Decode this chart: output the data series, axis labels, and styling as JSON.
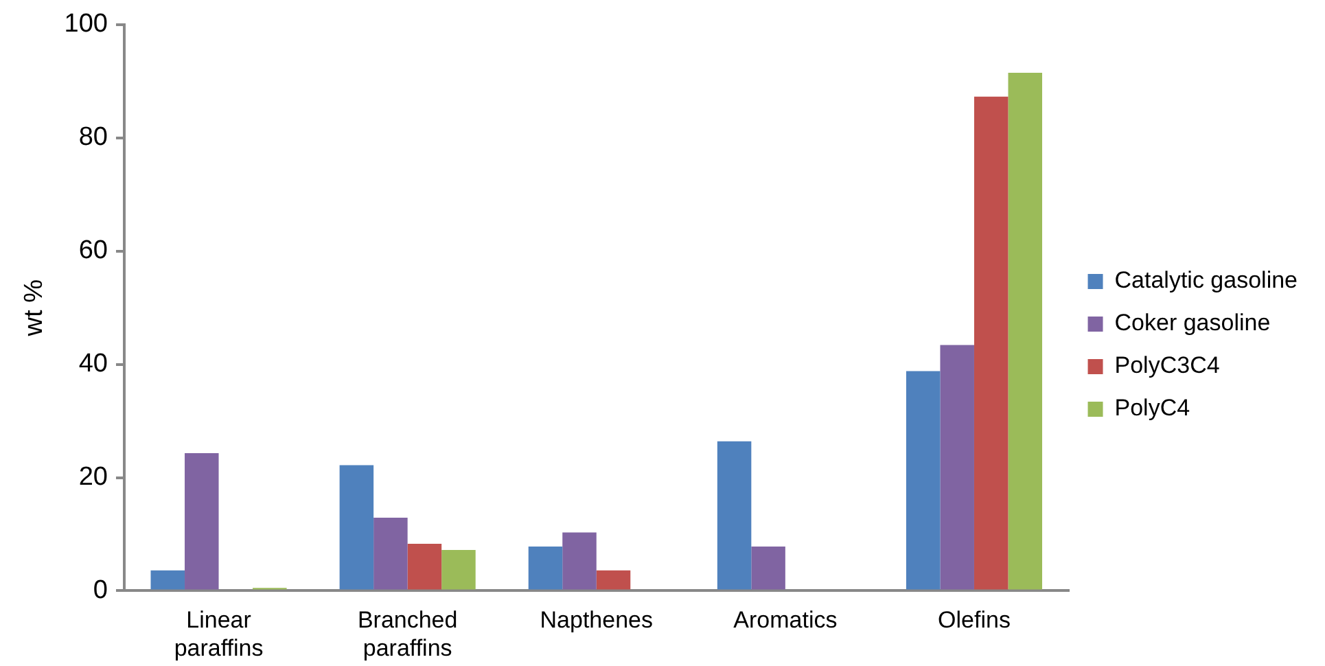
{
  "chart_data": {
    "type": "bar",
    "ylabel": "wt %",
    "categories": [
      "Linear paraffins",
      "Branched paraffins",
      "Napthenes",
      "Aromatics",
      "Olefins"
    ],
    "series": [
      {
        "name": "Catalytic gasoline",
        "color": "#4f81bd",
        "values": [
          3.6,
          22.2,
          7.8,
          26.4,
          38.8
        ]
      },
      {
        "name": "Coker gasoline",
        "color": "#8064a2",
        "values": [
          24.3,
          12.9,
          10.3,
          7.8,
          43.4
        ]
      },
      {
        "name": "PolyC3C4",
        "color": "#c0504d",
        "values": [
          0,
          8.3,
          3.6,
          0,
          87.3
        ]
      },
      {
        "name": "PolyC4",
        "color": "#9bbb59",
        "values": [
          0.5,
          7.2,
          0,
          0,
          91.5
        ]
      }
    ],
    "ylim": [
      0,
      100
    ],
    "yticks": [
      0,
      20,
      40,
      60,
      80,
      100
    ],
    "grid": false,
    "legend": "right"
  }
}
